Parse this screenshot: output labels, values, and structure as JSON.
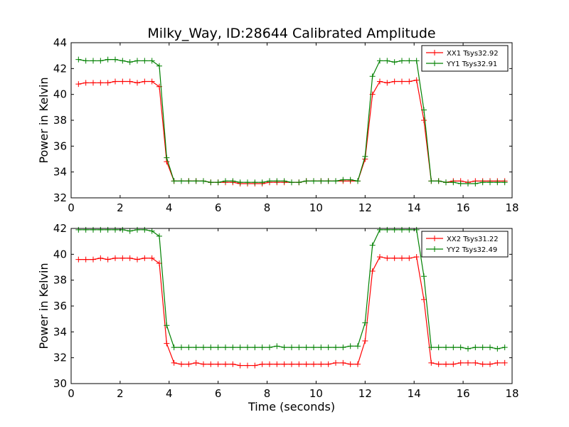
{
  "title": "Milky_Way, ID:28644 Calibrated Amplitude",
  "chart_data": [
    {
      "type": "line",
      "ylabel": "Power in Kelvin",
      "xlabel": "",
      "xlim": [
        0,
        18
      ],
      "ylim": [
        32,
        44
      ],
      "xticks": [
        "0",
        "2",
        "4",
        "6",
        "8",
        "10",
        "12",
        "14",
        "16",
        "18"
      ],
      "yticks": [
        "32",
        "34",
        "36",
        "38",
        "40",
        "42",
        "44"
      ],
      "legend_position": "top-right",
      "series": [
        {
          "name": "XX1 Tsys32.92",
          "color": "#ff0000",
          "marker": "plus",
          "x": [
            0.3,
            0.6,
            0.9,
            1.2,
            1.5,
            1.8,
            2.1,
            2.4,
            2.7,
            3.0,
            3.3,
            3.6,
            3.9,
            4.2,
            4.5,
            4.8,
            5.1,
            5.4,
            5.7,
            6.0,
            6.3,
            6.6,
            6.9,
            7.2,
            7.5,
            7.8,
            8.1,
            8.4,
            8.7,
            9.0,
            9.3,
            9.6,
            9.9,
            10.2,
            10.5,
            10.8,
            11.1,
            11.4,
            11.7,
            12.0,
            12.3,
            12.6,
            12.9,
            13.2,
            13.5,
            13.8,
            14.1,
            14.4,
            14.7,
            15.0,
            15.3,
            15.6,
            15.9,
            16.2,
            16.5,
            16.8,
            17.1,
            17.4,
            17.7
          ],
          "y": [
            40.8,
            40.9,
            40.9,
            40.9,
            40.9,
            41.0,
            41.0,
            41.0,
            40.9,
            41.0,
            41.0,
            40.6,
            34.8,
            33.3,
            33.3,
            33.3,
            33.3,
            33.3,
            33.2,
            33.2,
            33.2,
            33.2,
            33.1,
            33.1,
            33.1,
            33.1,
            33.2,
            33.2,
            33.2,
            33.2,
            33.2,
            33.3,
            33.3,
            33.3,
            33.3,
            33.3,
            33.3,
            33.3,
            33.3,
            35.0,
            40.0,
            41.0,
            40.9,
            41.0,
            41.0,
            41.0,
            41.1,
            38.0,
            33.3,
            33.3,
            33.2,
            33.3,
            33.3,
            33.2,
            33.3,
            33.3,
            33.3,
            33.3,
            33.3
          ]
        },
        {
          "name": "YY1 Tsys32.91",
          "color": "#008000",
          "marker": "plus",
          "x": [
            0.3,
            0.6,
            0.9,
            1.2,
            1.5,
            1.8,
            2.1,
            2.4,
            2.7,
            3.0,
            3.3,
            3.6,
            3.9,
            4.2,
            4.5,
            4.8,
            5.1,
            5.4,
            5.7,
            6.0,
            6.3,
            6.6,
            6.9,
            7.2,
            7.5,
            7.8,
            8.1,
            8.4,
            8.7,
            9.0,
            9.3,
            9.6,
            9.9,
            10.2,
            10.5,
            10.8,
            11.1,
            11.4,
            11.7,
            12.0,
            12.3,
            12.6,
            12.9,
            13.2,
            13.5,
            13.8,
            14.1,
            14.4,
            14.7,
            15.0,
            15.3,
            15.6,
            15.9,
            16.2,
            16.5,
            16.8,
            17.1,
            17.4,
            17.7
          ],
          "y": [
            42.7,
            42.6,
            42.6,
            42.6,
            42.7,
            42.7,
            42.6,
            42.5,
            42.6,
            42.6,
            42.6,
            42.2,
            35.1,
            33.3,
            33.3,
            33.3,
            33.3,
            33.3,
            33.2,
            33.2,
            33.3,
            33.3,
            33.2,
            33.2,
            33.2,
            33.2,
            33.3,
            33.3,
            33.3,
            33.2,
            33.2,
            33.3,
            33.3,
            33.3,
            33.3,
            33.3,
            33.4,
            33.4,
            33.3,
            35.2,
            41.4,
            42.6,
            42.6,
            42.5,
            42.6,
            42.6,
            42.6,
            38.8,
            33.3,
            33.3,
            33.2,
            33.2,
            33.1,
            33.1,
            33.1,
            33.2,
            33.2,
            33.2,
            33.2
          ]
        }
      ]
    },
    {
      "type": "line",
      "ylabel": "Power in Kelvin",
      "xlabel": "Time (seconds)",
      "xlim": [
        0,
        18
      ],
      "ylim": [
        30,
        42
      ],
      "xticks": [
        "0",
        "2",
        "4",
        "6",
        "8",
        "10",
        "12",
        "14",
        "16",
        "18"
      ],
      "yticks": [
        "30",
        "32",
        "34",
        "36",
        "38",
        "40",
        "42"
      ],
      "legend_position": "top-right",
      "series": [
        {
          "name": "XX2 Tsys31.22",
          "color": "#ff0000",
          "marker": "plus",
          "x": [
            0.3,
            0.6,
            0.9,
            1.2,
            1.5,
            1.8,
            2.1,
            2.4,
            2.7,
            3.0,
            3.3,
            3.6,
            3.9,
            4.2,
            4.5,
            4.8,
            5.1,
            5.4,
            5.7,
            6.0,
            6.3,
            6.6,
            6.9,
            7.2,
            7.5,
            7.8,
            8.1,
            8.4,
            8.7,
            9.0,
            9.3,
            9.6,
            9.9,
            10.2,
            10.5,
            10.8,
            11.1,
            11.4,
            11.7,
            12.0,
            12.3,
            12.6,
            12.9,
            13.2,
            13.5,
            13.8,
            14.1,
            14.4,
            14.7,
            15.0,
            15.3,
            15.6,
            15.9,
            16.2,
            16.5,
            16.8,
            17.1,
            17.4,
            17.7
          ],
          "y": [
            39.6,
            39.6,
            39.6,
            39.7,
            39.6,
            39.7,
            39.7,
            39.7,
            39.6,
            39.7,
            39.7,
            39.3,
            33.1,
            31.6,
            31.5,
            31.5,
            31.6,
            31.5,
            31.5,
            31.5,
            31.5,
            31.5,
            31.4,
            31.4,
            31.4,
            31.5,
            31.5,
            31.5,
            31.5,
            31.5,
            31.5,
            31.5,
            31.5,
            31.5,
            31.5,
            31.6,
            31.6,
            31.5,
            31.5,
            33.3,
            38.7,
            39.8,
            39.7,
            39.7,
            39.7,
            39.7,
            39.8,
            36.5,
            31.6,
            31.5,
            31.5,
            31.5,
            31.6,
            31.6,
            31.6,
            31.5,
            31.5,
            31.6,
            31.6
          ]
        },
        {
          "name": "YY2 Tsys32.49",
          "color": "#008000",
          "marker": "plus",
          "x": [
            0.3,
            0.6,
            0.9,
            1.2,
            1.5,
            1.8,
            2.1,
            2.4,
            2.7,
            3.0,
            3.3,
            3.6,
            3.9,
            4.2,
            4.5,
            4.8,
            5.1,
            5.4,
            5.7,
            6.0,
            6.3,
            6.6,
            6.9,
            7.2,
            7.5,
            7.8,
            8.1,
            8.4,
            8.7,
            9.0,
            9.3,
            9.6,
            9.9,
            10.2,
            10.5,
            10.8,
            11.1,
            11.4,
            11.7,
            12.0,
            12.3,
            12.6,
            12.9,
            13.2,
            13.5,
            13.8,
            14.1,
            14.4,
            14.7,
            15.0,
            15.3,
            15.6,
            15.9,
            16.2,
            16.5,
            16.8,
            17.1,
            17.4,
            17.7
          ],
          "y": [
            41.9,
            41.9,
            41.9,
            41.9,
            41.9,
            41.9,
            41.9,
            41.8,
            41.9,
            41.9,
            41.8,
            41.4,
            34.5,
            32.8,
            32.8,
            32.8,
            32.8,
            32.8,
            32.8,
            32.8,
            32.8,
            32.8,
            32.8,
            32.8,
            32.8,
            32.8,
            32.8,
            32.9,
            32.8,
            32.8,
            32.8,
            32.8,
            32.8,
            32.8,
            32.8,
            32.8,
            32.8,
            32.9,
            32.9,
            34.7,
            40.7,
            41.9,
            41.9,
            41.9,
            41.9,
            41.9,
            41.9,
            38.3,
            32.8,
            32.8,
            32.8,
            32.8,
            32.8,
            32.7,
            32.8,
            32.8,
            32.8,
            32.7,
            32.8
          ]
        }
      ]
    }
  ]
}
